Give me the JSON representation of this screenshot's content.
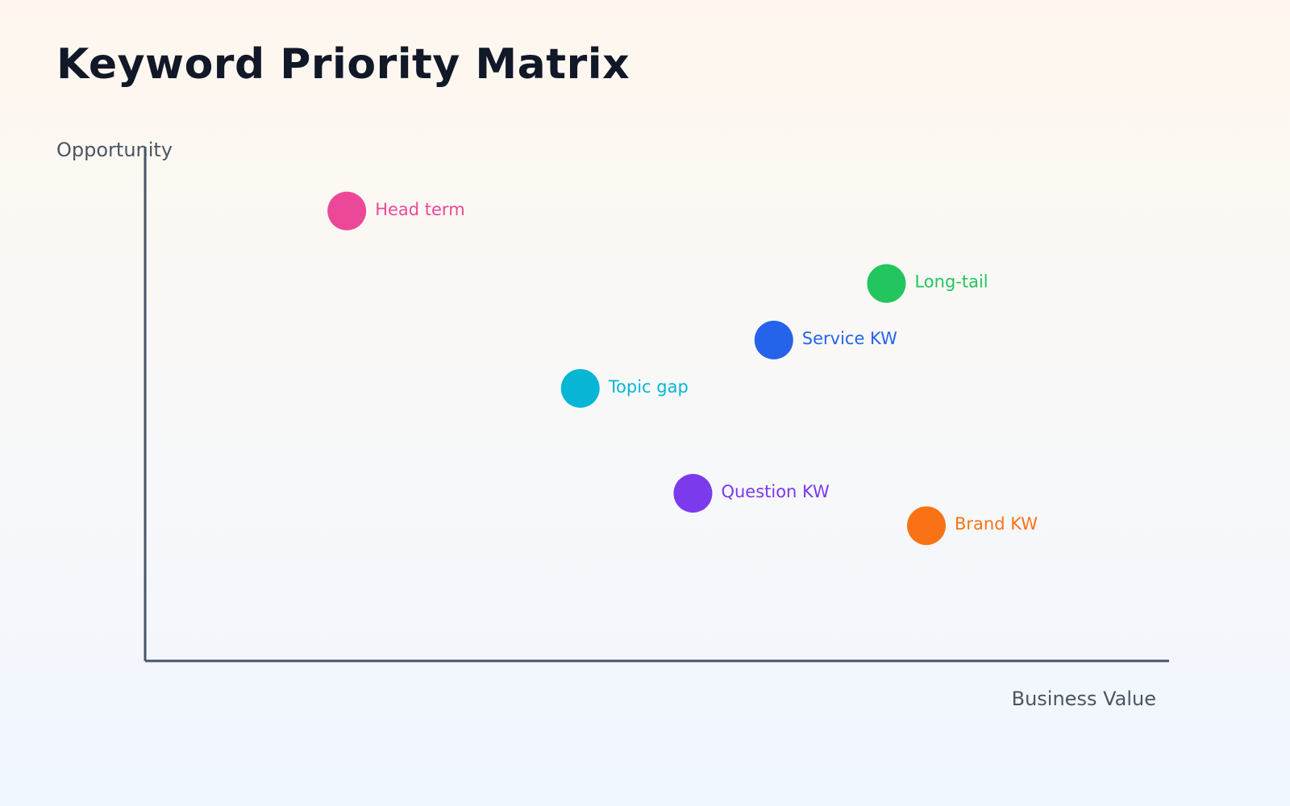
{
  "chart_data": {
    "type": "scatter",
    "title": "Keyword Priority Matrix",
    "xlabel": "Business Value",
    "ylabel": "Opportunity",
    "xlim": [
      0,
      10
    ],
    "ylim": [
      0,
      10
    ],
    "grid": false,
    "points": [
      {
        "label": "Head term",
        "x": 1.97,
        "y": 8.75,
        "color": "#ec4899"
      },
      {
        "label": "Long-tail",
        "x": 7.24,
        "y": 7.34,
        "color": "#22c55e"
      },
      {
        "label": "Service KW",
        "x": 6.14,
        "y": 6.24,
        "color": "#2563eb"
      },
      {
        "label": "Topic gap",
        "x": 4.25,
        "y": 5.3,
        "color": "#06b6d4"
      },
      {
        "label": "Question KW",
        "x": 5.35,
        "y": 3.26,
        "color": "#7c3aed"
      },
      {
        "label": "Brand KW",
        "x": 7.63,
        "y": 2.63,
        "color": "#f97316"
      }
    ]
  }
}
